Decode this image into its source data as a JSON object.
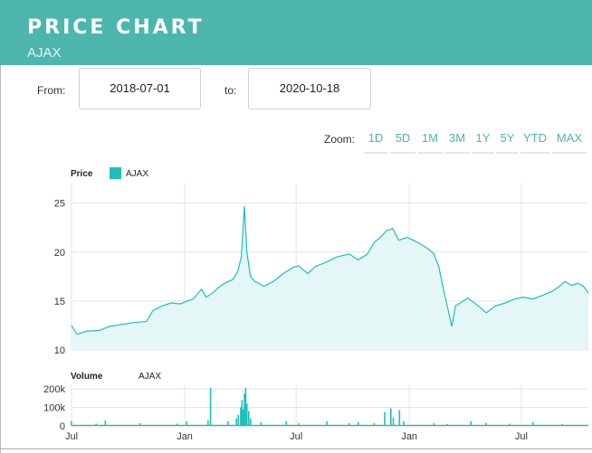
{
  "header": {
    "title": "PRICE CHART",
    "subtitle": "AJAX"
  },
  "range": {
    "from_label": "From:",
    "from_value": "2018-07-01",
    "to_label": "to:",
    "to_value": "2020-10-18"
  },
  "zoom": {
    "label": "Zoom:",
    "buttons": [
      "1D",
      "5D",
      "1M",
      "3M",
      "1Y",
      "5Y",
      "YTD",
      "MAX"
    ]
  },
  "colors": {
    "accent": "#4db6ac",
    "series": "#1fbfb8",
    "area": "#e4f6f6"
  },
  "chart_data": [
    {
      "type": "area",
      "ylabel": "Price",
      "legend": [
        "AJAX"
      ],
      "ylim": [
        10,
        27
      ],
      "yticks": [
        10,
        15,
        20,
        25
      ],
      "xlim": [
        "2018-07-01",
        "2020-10-18"
      ],
      "xticks": [
        {
          "date": "2018-07-01",
          "label": "Jul"
        },
        {
          "date": "2019-01-01",
          "label": "Jan"
        },
        {
          "date": "2019-07-01",
          "label": "Jul"
        },
        {
          "date": "2020-01-01",
          "label": "Jan"
        },
        {
          "date": "2020-07-01",
          "label": "Jul"
        }
      ],
      "series": [
        {
          "name": "AJAX",
          "points": [
            [
              "2018-07-01",
              12.5
            ],
            [
              "2018-07-10",
              11.6
            ],
            [
              "2018-07-25",
              11.9
            ],
            [
              "2018-08-15",
              12.0
            ],
            [
              "2018-09-01",
              12.4
            ],
            [
              "2018-09-20",
              12.6
            ],
            [
              "2018-10-10",
              12.8
            ],
            [
              "2018-10-31",
              12.9
            ],
            [
              "2018-11-10",
              14.0
            ],
            [
              "2018-11-25",
              14.5
            ],
            [
              "2018-12-10",
              14.8
            ],
            [
              "2018-12-25",
              14.7
            ],
            [
              "2019-01-05",
              15.0
            ],
            [
              "2019-01-15",
              15.2
            ],
            [
              "2019-01-28",
              16.2
            ],
            [
              "2019-02-05",
              15.4
            ],
            [
              "2019-02-15",
              15.8
            ],
            [
              "2019-03-01",
              16.6
            ],
            [
              "2019-03-10",
              16.9
            ],
            [
              "2019-03-20",
              17.2
            ],
            [
              "2019-03-28",
              18.0
            ],
            [
              "2019-04-03",
              19.5
            ],
            [
              "2019-04-08",
              24.7
            ],
            [
              "2019-04-12",
              20.0
            ],
            [
              "2019-04-18",
              17.5
            ],
            [
              "2019-04-25",
              17.0
            ],
            [
              "2019-05-10",
              16.5
            ],
            [
              "2019-05-25",
              17.0
            ],
            [
              "2019-06-10",
              17.8
            ],
            [
              "2019-06-25",
              18.4
            ],
            [
              "2019-07-05",
              18.6
            ],
            [
              "2019-07-20",
              17.8
            ],
            [
              "2019-08-01",
              18.5
            ],
            [
              "2019-08-20",
              19.0
            ],
            [
              "2019-09-05",
              19.5
            ],
            [
              "2019-09-25",
              19.8
            ],
            [
              "2019-10-10",
              19.2
            ],
            [
              "2019-10-25",
              19.8
            ],
            [
              "2019-11-05",
              21.0
            ],
            [
              "2019-11-15",
              21.5
            ],
            [
              "2019-11-25",
              22.2
            ],
            [
              "2019-12-05",
              22.4
            ],
            [
              "2019-12-15",
              21.2
            ],
            [
              "2019-12-28",
              21.5
            ],
            [
              "2020-01-08",
              21.2
            ],
            [
              "2020-01-20",
              20.8
            ],
            [
              "2020-02-01",
              20.3
            ],
            [
              "2020-02-10",
              19.8
            ],
            [
              "2020-02-18",
              18.5
            ],
            [
              "2020-02-25",
              16.3
            ],
            [
              "2020-03-03",
              14.4
            ],
            [
              "2020-03-10",
              12.4
            ],
            [
              "2020-03-16",
              14.5
            ],
            [
              "2020-03-24",
              14.8
            ],
            [
              "2020-04-05",
              15.3
            ],
            [
              "2020-04-20",
              14.6
            ],
            [
              "2020-05-05",
              13.8
            ],
            [
              "2020-05-20",
              14.5
            ],
            [
              "2020-06-05",
              14.8
            ],
            [
              "2020-06-20",
              15.2
            ],
            [
              "2020-07-05",
              15.4
            ],
            [
              "2020-07-20",
              15.2
            ],
            [
              "2020-08-05",
              15.6
            ],
            [
              "2020-08-20",
              16.0
            ],
            [
              "2020-09-01",
              16.5
            ],
            [
              "2020-09-10",
              17.0
            ],
            [
              "2020-09-20",
              16.6
            ],
            [
              "2020-10-01",
              16.8
            ],
            [
              "2020-10-10",
              16.5
            ],
            [
              "2020-10-18",
              15.8
            ]
          ]
        }
      ]
    },
    {
      "type": "bar",
      "ylabel": "Volume",
      "legend": [
        "AJAX"
      ],
      "ylim": [
        0,
        220000
      ],
      "yticks": [
        {
          "value": 0,
          "label": "0"
        },
        {
          "value": 100000,
          "label": "100k"
        },
        {
          "value": 200000,
          "label": "200k"
        }
      ],
      "series": [
        {
          "name": "AJAX",
          "baseline": 6000,
          "spikes": [
            [
              "2018-07-01",
              25000
            ],
            [
              "2018-08-10",
              12000
            ],
            [
              "2018-08-25",
              30000
            ],
            [
              "2018-10-20",
              15000
            ],
            [
              "2018-12-20",
              12000
            ],
            [
              "2019-01-04",
              25000
            ],
            [
              "2019-02-08",
              30000
            ],
            [
              "2019-02-12",
              205000
            ],
            [
              "2019-03-12",
              25000
            ],
            [
              "2019-03-26",
              40000
            ],
            [
              "2019-03-29",
              60000
            ],
            [
              "2019-04-02",
              100000
            ],
            [
              "2019-04-04",
              140000
            ],
            [
              "2019-04-06",
              90000
            ],
            [
              "2019-04-08",
              175000
            ],
            [
              "2019-04-10",
              205000
            ],
            [
              "2019-04-12",
              120000
            ],
            [
              "2019-04-15",
              80000
            ],
            [
              "2019-04-18",
              40000
            ],
            [
              "2019-05-05",
              20000
            ],
            [
              "2019-06-15",
              25000
            ],
            [
              "2019-07-05",
              15000
            ],
            [
              "2019-08-20",
              25000
            ],
            [
              "2019-09-25",
              15000
            ],
            [
              "2019-10-10",
              20000
            ],
            [
              "2019-11-05",
              15000
            ],
            [
              "2019-11-22",
              75000
            ],
            [
              "2019-12-02",
              95000
            ],
            [
              "2019-12-06",
              45000
            ],
            [
              "2019-12-16",
              85000
            ],
            [
              "2019-12-23",
              25000
            ],
            [
              "2020-02-10",
              15000
            ],
            [
              "2020-03-03",
              10000
            ],
            [
              "2020-04-10",
              25000
            ],
            [
              "2020-05-05",
              15000
            ],
            [
              "2020-06-12",
              12000
            ],
            [
              "2020-07-20",
              20000
            ],
            [
              "2020-09-05",
              10000
            ]
          ]
        }
      ]
    }
  ]
}
